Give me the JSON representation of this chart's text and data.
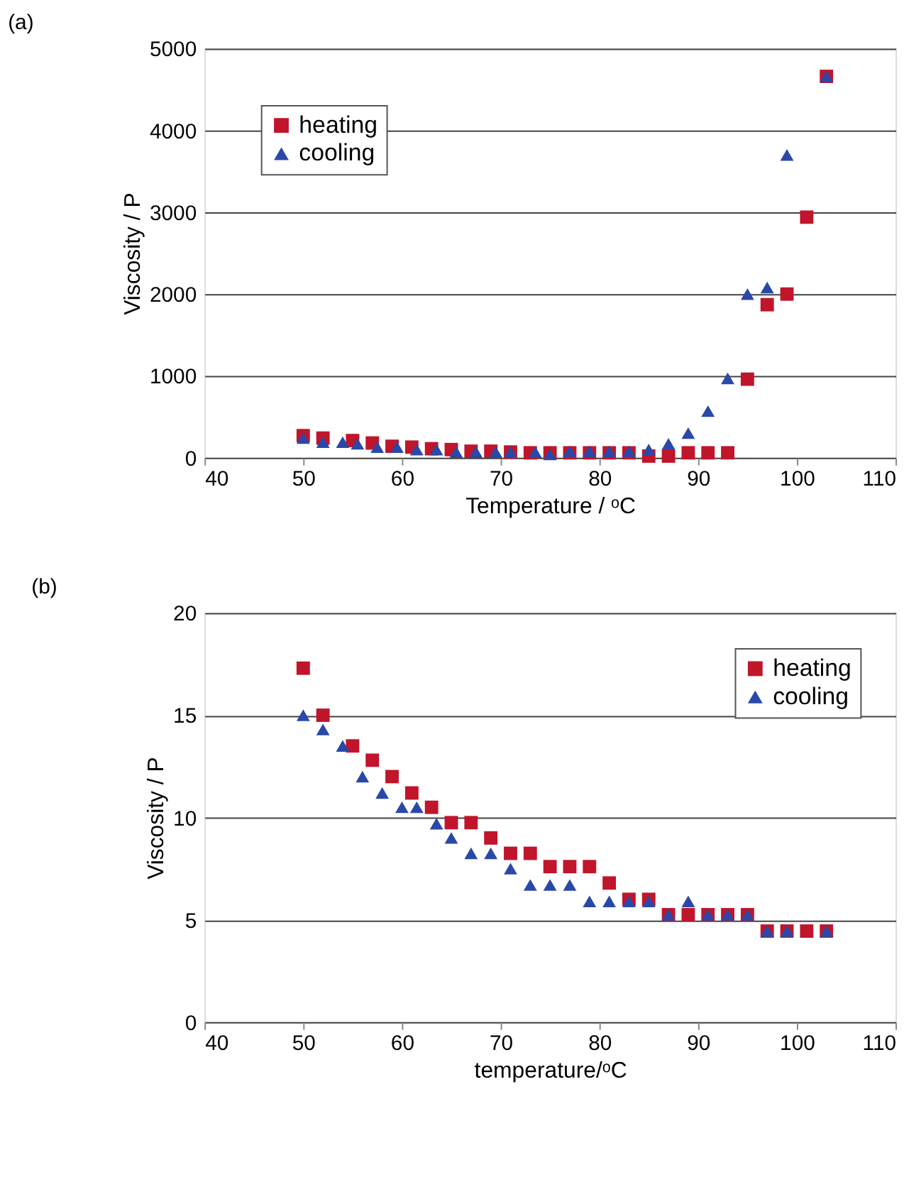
{
  "chart_data": [
    {
      "type": "scatter",
      "title": "(a)",
      "xlabel": "Temperature / ᵒC",
      "ylabel": "Viscosity / P",
      "xlim": [
        40,
        110
      ],
      "xticks": [
        40,
        50,
        60,
        70,
        80,
        90,
        100,
        110
      ],
      "ylim": [
        0,
        5000
      ],
      "yticks": [
        0,
        1000,
        2000,
        3000,
        4000,
        5000
      ],
      "grid": "y",
      "legend": "top left",
      "series": [
        {
          "name": "heating",
          "color": "#c0152a",
          "marker": "square",
          "x": [
            50,
            52,
            55,
            57,
            59,
            61,
            63,
            65,
            67,
            69,
            71,
            73,
            75,
            77,
            79,
            81,
            83,
            85,
            87,
            89,
            91,
            93,
            95,
            97,
            99,
            101,
            103
          ],
          "values": [
            270,
            240,
            210,
            180,
            140,
            130,
            110,
            100,
            80,
            80,
            70,
            60,
            60,
            60,
            60,
            60,
            60,
            20,
            20,
            60,
            60,
            60,
            960,
            1870,
            2000,
            2940,
            4660
          ]
        },
        {
          "name": "cooling",
          "color": "#2a48a8",
          "marker": "triangle",
          "x": [
            50,
            52,
            54,
            55.5,
            57.5,
            59.5,
            61.5,
            63.5,
            65.5,
            67.5,
            69.5,
            71,
            73.5,
            75,
            77,
            79,
            81,
            83,
            85,
            87,
            89,
            91,
            93,
            95,
            97,
            99,
            103
          ],
          "values": [
            240,
            190,
            190,
            170,
            130,
            130,
            100,
            100,
            70,
            70,
            70,
            70,
            70,
            40,
            80,
            80,
            80,
            80,
            100,
            170,
            300,
            570,
            970,
            2000,
            2080,
            3700,
            4660
          ]
        }
      ]
    },
    {
      "type": "scatter",
      "title": "(b)",
      "xlabel": "temperature/ᵒC",
      "ylabel": "Viscosity / P",
      "xlim": [
        40,
        110
      ],
      "xticks": [
        40,
        50,
        60,
        70,
        80,
        90,
        100,
        110
      ],
      "ylim": [
        0,
        20
      ],
      "yticks": [
        0,
        5,
        10,
        15,
        20
      ],
      "grid": "y",
      "legend": "top right",
      "series": [
        {
          "name": "heating",
          "color": "#c0152a",
          "marker": "square",
          "x": [
            50,
            52,
            55,
            57,
            59,
            61,
            63,
            65,
            67,
            69,
            71,
            73,
            75,
            77,
            79,
            81,
            83,
            85,
            87,
            89,
            91,
            93,
            95,
            97,
            99,
            101,
            103
          ],
          "values": [
            17.3,
            15.0,
            13.5,
            12.8,
            12.0,
            11.2,
            10.5,
            9.75,
            9.75,
            9.0,
            8.25,
            8.25,
            7.6,
            7.6,
            7.6,
            6.8,
            6.0,
            6.0,
            5.25,
            5.25,
            5.25,
            5.25,
            5.25,
            4.45,
            4.45,
            4.45,
            4.45
          ]
        },
        {
          "name": "cooling",
          "color": "#2a48a8",
          "marker": "triangle",
          "x": [
            50,
            52,
            54,
            56,
            58,
            60,
            61.5,
            63.5,
            65,
            67,
            69,
            71,
            73,
            75,
            77,
            79,
            81,
            83,
            85,
            87,
            89,
            91,
            93,
            95,
            97,
            99,
            103
          ],
          "values": [
            15.0,
            14.3,
            13.5,
            12.0,
            11.2,
            10.5,
            10.5,
            9.7,
            9.0,
            8.25,
            8.25,
            7.5,
            6.7,
            6.7,
            6.7,
            5.9,
            5.9,
            5.9,
            5.9,
            5.25,
            5.9,
            5.25,
            5.25,
            5.25,
            4.45,
            4.45,
            4.45
          ]
        }
      ]
    }
  ]
}
